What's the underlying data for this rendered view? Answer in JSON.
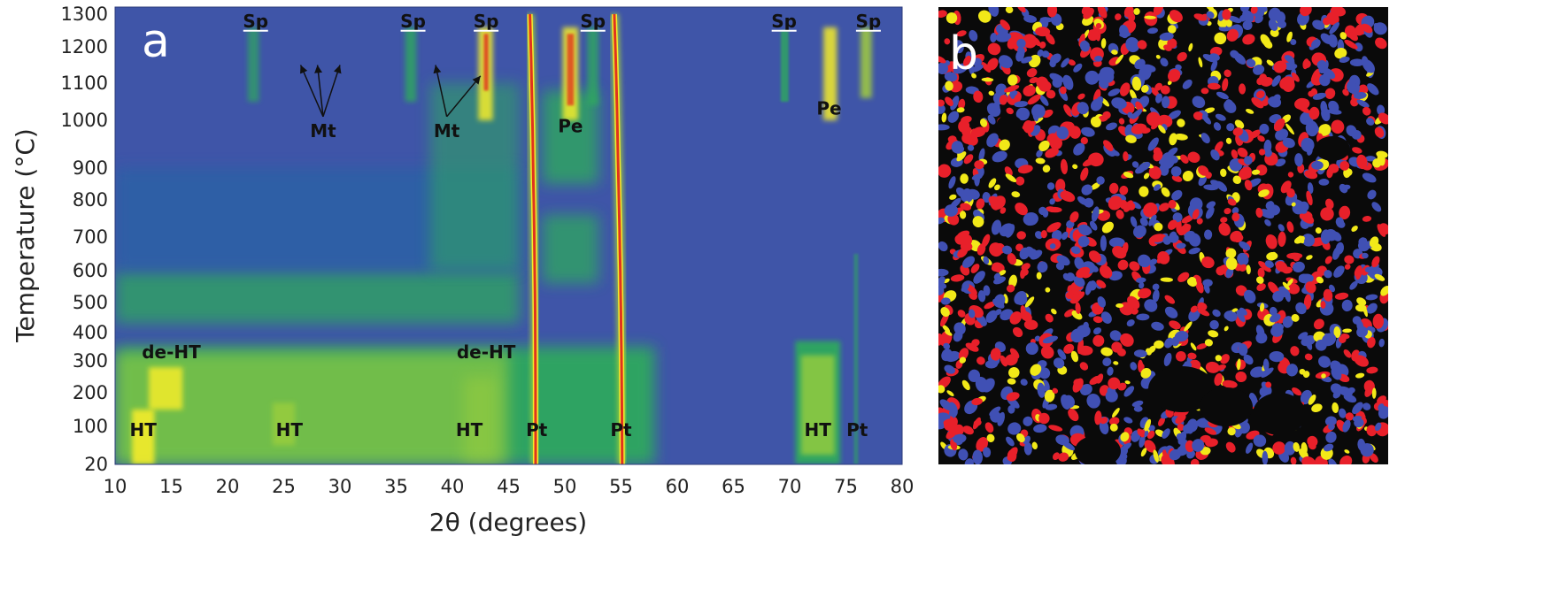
{
  "panel_a": {
    "label": "a",
    "chart_data": {
      "type": "heatmap",
      "xlabel": "2θ (degrees)",
      "ylabel": "Temperature (°C)",
      "xlim": [
        10,
        80
      ],
      "ylim": [
        20,
        1300
      ],
      "x_ticks": [
        10,
        15,
        20,
        25,
        30,
        35,
        40,
        45,
        50,
        55,
        60,
        65,
        70,
        75,
        80
      ],
      "y_ticks": [
        20,
        100,
        200,
        300,
        400,
        500,
        600,
        700,
        800,
        900,
        1000,
        1100,
        1200,
        1300
      ],
      "annotations": [
        {
          "text": "Sp",
          "x": 22.5,
          "t": 1260
        },
        {
          "text": "Sp",
          "x": 36.5,
          "t": 1260
        },
        {
          "text": "Sp",
          "x": 43.0,
          "t": 1260
        },
        {
          "text": "Sp",
          "x": 52.5,
          "t": 1260
        },
        {
          "text": "Sp",
          "x": 69.5,
          "t": 1260
        },
        {
          "text": "Sp",
          "x": 77.0,
          "t": 1260
        },
        {
          "text": "Mt",
          "x": 28.5,
          "t": 965
        },
        {
          "text": "Mt",
          "x": 39.5,
          "t": 965
        },
        {
          "text": "Pe",
          "x": 50.5,
          "t": 975
        },
        {
          "text": "Pe",
          "x": 73.5,
          "t": 1015
        },
        {
          "text": "de-HT",
          "x": 15.0,
          "t": 310
        },
        {
          "text": "de-HT",
          "x": 43.0,
          "t": 310
        },
        {
          "text": "HT",
          "x": 12.5,
          "t": 80
        },
        {
          "text": "HT",
          "x": 25.5,
          "t": 80
        },
        {
          "text": "HT",
          "x": 41.5,
          "t": 80
        },
        {
          "text": "Pt",
          "x": 47.5,
          "t": 80
        },
        {
          "text": "Pt",
          "x": 55.0,
          "t": 80
        },
        {
          "text": "HT",
          "x": 72.5,
          "t": 80
        },
        {
          "text": "Pt",
          "x": 76.0,
          "t": 80
        }
      ],
      "arrows": [
        {
          "label": "Mt",
          "from": [
            28.5,
            1010
          ],
          "to": [
            26.5,
            1150
          ]
        },
        {
          "label": "Mt",
          "from": [
            28.5,
            1010
          ],
          "to": [
            28.0,
            1150
          ]
        },
        {
          "label": "Mt",
          "from": [
            28.5,
            1010
          ],
          "to": [
            30.0,
            1150
          ]
        },
        {
          "label": "Mt",
          "from": [
            39.5,
            1010
          ],
          "to": [
            38.5,
            1150
          ]
        },
        {
          "label": "Mt",
          "from": [
            39.5,
            1010
          ],
          "to": [
            42.5,
            1120
          ]
        }
      ],
      "colors": {
        "background": "#3f55a8",
        "low": "#2a62a6",
        "mid": "#2ea85e",
        "high": "#a8d437",
        "peak_yellow": "#f4ec2c",
        "peak_red": "#e0331e"
      }
    }
  },
  "panel_b": {
    "label": "b",
    "phase_colors": {
      "phase_1": "#e8202a",
      "phase_2": "#4050b4",
      "phase_3": "#f2e918",
      "background": "#0a0a0a"
    }
  }
}
